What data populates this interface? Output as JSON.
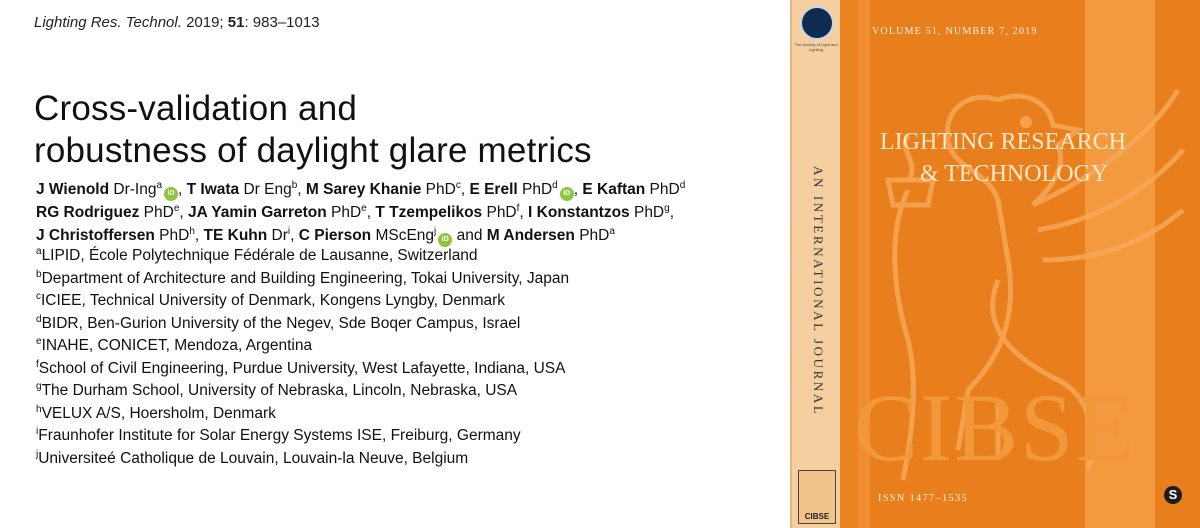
{
  "citation": {
    "journal": "Lighting Res. Technol.",
    "year": "2019;",
    "volume": "51",
    "pages": ": 983–1013"
  },
  "title": {
    "line1": "Cross-validation and",
    "line2": "robustness of daylight glare metrics"
  },
  "orcid_label": "iD",
  "authors": [
    {
      "name": "J Wienold",
      "degree": " Dr-Ing",
      "aff": "a",
      "orcid": true,
      "sep": ", "
    },
    {
      "name": "T Iwata",
      "degree": " Dr Eng",
      "aff": "b",
      "orcid": false,
      "sep": ", "
    },
    {
      "name": "M Sarey Khanie",
      "degree": " PhD",
      "aff": "c",
      "orcid": false,
      "sep": ", "
    },
    {
      "name": "E Erell",
      "degree": " PhD",
      "aff": "d",
      "orcid": true,
      "sep": ", "
    },
    {
      "name": "E Kaftan",
      "degree": " PhD",
      "aff": "d",
      "orcid": false,
      "sep": " "
    },
    {
      "name": "RG Rodriguez",
      "degree": " PhD",
      "aff": "e",
      "orcid": false,
      "sep": ", "
    },
    {
      "name": "JA Yamin Garreton",
      "degree": " PhD",
      "aff": "e",
      "orcid": false,
      "sep": ", "
    },
    {
      "name": "T Tzempelikos",
      "degree": " PhD",
      "aff": "f",
      "orcid": false,
      "sep": ", "
    },
    {
      "name": "I Konstantzos",
      "degree": " PhD",
      "aff": "g",
      "orcid": false,
      "sep": ", "
    },
    {
      "name": "J Christoffersen",
      "degree": " PhD",
      "aff": "h",
      "orcid": false,
      "sep": ", "
    },
    {
      "name": "TE Kuhn",
      "degree": " Dr",
      "aff": "i",
      "orcid": false,
      "sep": ", "
    },
    {
      "name": "C Pierson",
      "degree": " MScEng",
      "aff": "j",
      "orcid": true,
      "sep": " and "
    },
    {
      "name": "M Andersen",
      "degree": " PhD",
      "aff": "a",
      "orcid": false,
      "sep": ""
    }
  ],
  "affiliations": [
    {
      "key": "a",
      "text": "LIPID, École Polytechnique Fédérale de Lausanne, Switzerland"
    },
    {
      "key": "b",
      "text": "Department of Architecture and Building Engineering, Tokai University, Japan"
    },
    {
      "key": "c",
      "text": "ICIEE, Technical University of Denmark, Kongens Lyngby, Denmark"
    },
    {
      "key": "d",
      "text": "BIDR, Ben-Gurion University of the Negev, Sde Boqer Campus, Israel"
    },
    {
      "key": "e",
      "text": "INAHE, CONICET, Mendoza, Argentina"
    },
    {
      "key": "f",
      "text": "School of Civil Engineering, Purdue University, West Lafayette, Indiana, USA"
    },
    {
      "key": "g",
      "text": "The Durham School, University of Nebraska, Lincoln, Nebraska, USA"
    },
    {
      "key": "h",
      "text": "VELUX A/S, Hoersholm, Denmark"
    },
    {
      "key": "i",
      "text": "Fraunhofer Institute for Solar Energy Systems ISE, Freiburg, Germany"
    },
    {
      "key": "j",
      "text": "Universiteé Catholique de Louvain, Louvain-la Neuve, Belgium"
    }
  ],
  "cover": {
    "volume_line": "VOLUME 51, NUMBER 7, 2019",
    "title_line1": "LIGHTING RESEARCH",
    "title_line2": "& TECHNOLOGY",
    "spine_text": "AN INTERNATIONAL JOURNAL",
    "spine_logo_caption": "The Society of Light and Lighting",
    "spine_badge": "CIBSE",
    "big_logo": "CIBSE",
    "issn": "ISSN 1477–1535",
    "publisher_mark": "S",
    "colors": {
      "cover": "#e97e1c",
      "spine": "#f6cfa0",
      "title": "#ffe9c9"
    }
  }
}
